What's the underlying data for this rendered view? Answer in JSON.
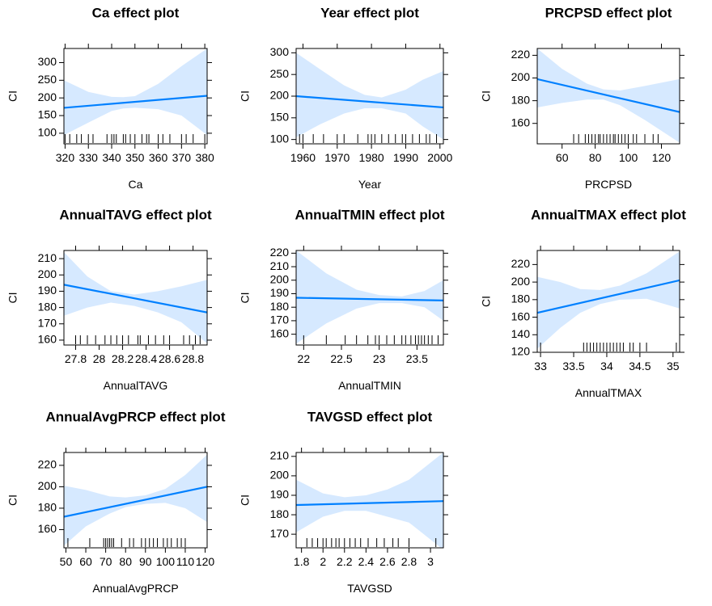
{
  "panels": [
    {
      "title": "Ca effect plot",
      "xlabel": "Ca",
      "ylabel": "CI",
      "xlim": [
        319.5,
        381
      ],
      "ylim": [
        70,
        340
      ],
      "xticks": [
        320,
        330,
        340,
        350,
        360,
        370,
        380
      ],
      "yticks": [
        100,
        150,
        200,
        250,
        300
      ],
      "fit": [
        [
          319.5,
          172
        ],
        [
          381,
          206
        ]
      ],
      "band": {
        "x": [
          319.5,
          330,
          340,
          345,
          350,
          360,
          370,
          381
        ],
        "upper": [
          250,
          217,
          203,
          202,
          205,
          240,
          290,
          340
        ],
        "lower": [
          95,
          130,
          163,
          170,
          172,
          168,
          150,
          95
        ]
      },
      "rug": [
        320,
        322,
        325,
        327,
        330,
        332,
        338,
        340,
        341,
        342,
        345,
        346,
        348,
        350,
        353,
        355,
        356,
        360,
        362,
        365,
        370,
        372,
        375,
        380
      ]
    },
    {
      "title": "Year effect plot",
      "xlabel": "Year",
      "ylabel": "CI",
      "xlim": [
        1958,
        2001
      ],
      "ylim": [
        90,
        310
      ],
      "xticks": [
        1960,
        1970,
        1980,
        1990,
        2000
      ],
      "yticks": [
        100,
        150,
        200,
        250,
        300
      ],
      "fit": [
        [
          1958,
          200
        ],
        [
          2001,
          174
        ]
      ],
      "band": {
        "x": [
          1958,
          1965,
          1972,
          1978,
          1983,
          1990,
          1995,
          2001
        ],
        "upper": [
          300,
          262,
          225,
          203,
          197,
          215,
          238,
          258
        ],
        "lower": [
          105,
          135,
          160,
          172,
          172,
          160,
          130,
          100
        ]
      },
      "rug": [
        1959,
        1960,
        1963,
        1966,
        1970,
        1972,
        1976,
        1979,
        1980,
        1981,
        1983,
        1985,
        1987,
        1989,
        1990,
        1992,
        1994,
        1996,
        1997,
        1999
      ]
    },
    {
      "title": "PRCPSD effect plot",
      "xlabel": "PRCPSD",
      "ylabel": "CI",
      "xlim": [
        45,
        131
      ],
      "ylim": [
        142,
        226
      ],
      "xticks": [
        60,
        80,
        100,
        120
      ],
      "yticks": [
        160,
        180,
        200,
        220
      ],
      "fit": [
        [
          45,
          199
        ],
        [
          131,
          170
        ]
      ],
      "band": {
        "x": [
          45,
          60,
          75,
          85,
          95,
          110,
          131
        ],
        "upper": [
          226,
          208,
          195,
          190,
          189,
          193,
          199
        ],
        "lower": [
          174,
          178,
          181,
          181,
          176,
          163,
          143
        ]
      },
      "rug": [
        67,
        70,
        74,
        76,
        78,
        80,
        82,
        83,
        85,
        87,
        89,
        91,
        92,
        94,
        96,
        98,
        100,
        103,
        105,
        110,
        115,
        118
      ]
    },
    {
      "title": "AnnualTAVG effect plot",
      "xlabel": "AnnualTAVG",
      "ylabel": "CI",
      "xlim": [
        27.7,
        28.92
      ],
      "ylim": [
        157,
        215
      ],
      "xticks": [
        27.8,
        28.0,
        28.2,
        28.4,
        28.6,
        28.8
      ],
      "yticks": [
        160,
        170,
        180,
        190,
        200,
        210
      ],
      "fit": [
        [
          27.7,
          194
        ],
        [
          28.92,
          177
        ]
      ],
      "band": {
        "x": [
          27.7,
          27.9,
          28.1,
          28.3,
          28.5,
          28.7,
          28.92
        ],
        "upper": [
          214,
          199,
          190,
          188,
          190,
          193,
          197
        ],
        "lower": [
          175,
          180,
          183,
          181,
          177,
          171,
          158
        ]
      },
      "rug": [
        27.8,
        27.84,
        27.9,
        27.97,
        28.05,
        28.1,
        28.15,
        28.2,
        28.25,
        28.33,
        28.35,
        28.42,
        28.48,
        28.55,
        28.6,
        28.72,
        28.77,
        28.82,
        28.86
      ]
    },
    {
      "title": "AnnualTMIN effect plot",
      "xlabel": "AnnualTMIN",
      "ylabel": "CI",
      "xlim": [
        21.9,
        23.85
      ],
      "ylim": [
        152,
        222
      ],
      "xticks": [
        22.0,
        22.5,
        23.0,
        23.5
      ],
      "yticks": [
        160,
        170,
        180,
        190,
        200,
        210,
        220
      ],
      "fit": [
        [
          21.9,
          187
        ],
        [
          23.85,
          185
        ]
      ],
      "band": {
        "x": [
          21.9,
          22.3,
          22.7,
          23.0,
          23.3,
          23.6,
          23.85
        ],
        "upper": [
          222,
          205,
          193,
          189,
          188,
          192,
          200
        ],
        "lower": [
          153,
          168,
          179,
          183,
          183,
          180,
          170
        ]
      },
      "rug": [
        22.0,
        22.3,
        22.55,
        22.7,
        22.85,
        22.95,
        23.0,
        23.1,
        23.2,
        23.3,
        23.35,
        23.42,
        23.48,
        23.52,
        23.56,
        23.6,
        23.65,
        23.7,
        23.78
      ]
    },
    {
      "title": "AnnualTMAX effect plot",
      "xlabel": "AnnualTMAX",
      "ylabel": "CI",
      "xlim": [
        32.95,
        35.1
      ],
      "ylim": [
        120,
        236
      ],
      "xticks": [
        33.0,
        33.5,
        34.0,
        34.5,
        35.0
      ],
      "yticks": [
        120,
        140,
        160,
        180,
        200,
        220
      ],
      "fit": [
        [
          32.95,
          165
        ],
        [
          35.1,
          202
        ]
      ],
      "band": {
        "x": [
          32.95,
          33.3,
          33.6,
          33.9,
          34.2,
          34.6,
          35.1
        ],
        "upper": [
          206,
          200,
          192,
          191,
          196,
          210,
          235
        ],
        "lower": [
          124,
          148,
          165,
          175,
          180,
          181,
          170
        ]
      },
      "rug": [
        33.0,
        33.65,
        33.7,
        33.75,
        33.8,
        33.85,
        33.9,
        33.95,
        34.0,
        34.05,
        34.1,
        34.15,
        34.2,
        34.25,
        34.35,
        34.4,
        34.5,
        34.6,
        35.05
      ]
    },
    {
      "title": "AnnualAvgPRCP effect plot",
      "xlabel": "AnnualAvgPRCP",
      "ylabel": "CI",
      "xlim": [
        49,
        121
      ],
      "ylim": [
        143,
        232
      ],
      "xticks": [
        50,
        60,
        70,
        80,
        90,
        100,
        110,
        120
      ],
      "yticks": [
        160,
        180,
        200,
        220
      ],
      "fit": [
        [
          49,
          172
        ],
        [
          121,
          200
        ]
      ],
      "band": {
        "x": [
          49,
          60,
          72,
          80,
          90,
          100,
          110,
          121
        ],
        "upper": [
          201,
          197,
          191,
          190,
          192,
          198,
          211,
          230
        ],
        "lower": [
          145,
          163,
          175,
          181,
          184,
          185,
          180,
          167
        ]
      },
      "rug": [
        51,
        62,
        69,
        70,
        71,
        72,
        73,
        74,
        78,
        82,
        84,
        88,
        90,
        92,
        94,
        96,
        99,
        101,
        103,
        106,
        108,
        110
      ]
    },
    {
      "title": "TAVGSD effect plot",
      "xlabel": "TAVGSD",
      "ylabel": "CI",
      "xlim": [
        1.75,
        3.12
      ],
      "ylim": [
        163,
        212
      ],
      "xticks": [
        1.8,
        2.0,
        2.2,
        2.4,
        2.6,
        2.8,
        3.0
      ],
      "yticks": [
        170,
        180,
        190,
        200,
        210
      ],
      "fit": [
        [
          1.75,
          185
        ],
        [
          3.12,
          187
        ]
      ],
      "band": {
        "x": [
          1.75,
          2.0,
          2.2,
          2.4,
          2.6,
          2.8,
          3.12
        ],
        "upper": [
          198,
          191,
          189,
          190,
          193,
          198,
          212
        ],
        "lower": [
          171,
          179,
          182,
          182,
          179,
          176,
          162
        ]
      },
      "rug": [
        1.85,
        1.9,
        1.95,
        2.0,
        2.03,
        2.08,
        2.12,
        2.15,
        2.2,
        2.25,
        2.3,
        2.35,
        2.42,
        2.5,
        2.57,
        2.65,
        2.7,
        2.8,
        3.05
      ]
    }
  ],
  "chart_data": [
    {
      "type": "line",
      "title": "Ca effect plot",
      "xlabel": "Ca",
      "ylabel": "CI",
      "xlim": [
        319.5,
        381
      ],
      "ylim": [
        70,
        340
      ],
      "x": [
        319.5,
        381
      ],
      "y": [
        172,
        206
      ],
      "grid": false
    },
    {
      "type": "line",
      "title": "Year effect plot",
      "xlabel": "Year",
      "ylabel": "CI",
      "xlim": [
        1958,
        2001
      ],
      "ylim": [
        90,
        310
      ],
      "x": [
        1958,
        2001
      ],
      "y": [
        200,
        174
      ],
      "grid": false
    },
    {
      "type": "line",
      "title": "PRCPSD effect plot",
      "xlabel": "PRCPSD",
      "ylabel": "CI",
      "xlim": [
        45,
        131
      ],
      "ylim": [
        142,
        226
      ],
      "x": [
        45,
        131
      ],
      "y": [
        199,
        170
      ],
      "grid": false
    },
    {
      "type": "line",
      "title": "AnnualTAVG effect plot",
      "xlabel": "AnnualTAVG",
      "ylabel": "CI",
      "xlim": [
        27.7,
        28.92
      ],
      "ylim": [
        157,
        215
      ],
      "x": [
        27.7,
        28.92
      ],
      "y": [
        194,
        177
      ],
      "grid": false
    },
    {
      "type": "line",
      "title": "AnnualTMIN effect plot",
      "xlabel": "AnnualTMIN",
      "ylabel": "CI",
      "xlim": [
        21.9,
        23.85
      ],
      "ylim": [
        152,
        222
      ],
      "x": [
        21.9,
        23.85
      ],
      "y": [
        187,
        185
      ],
      "grid": false
    },
    {
      "type": "line",
      "title": "AnnualTMAX effect plot",
      "xlabel": "AnnualTMAX",
      "ylabel": "CI",
      "xlim": [
        32.95,
        35.1
      ],
      "ylim": [
        120,
        236
      ],
      "x": [
        32.95,
        35.1
      ],
      "y": [
        165,
        202
      ],
      "grid": false
    },
    {
      "type": "line",
      "title": "AnnualAvgPRCP effect plot",
      "xlabel": "AnnualAvgPRCP",
      "ylabel": "CI",
      "xlim": [
        49,
        121
      ],
      "ylim": [
        143,
        232
      ],
      "x": [
        49,
        121
      ],
      "y": [
        172,
        200
      ],
      "grid": false
    },
    {
      "type": "line",
      "title": "TAVGSD effect plot",
      "xlabel": "TAVGSD",
      "ylabel": "CI",
      "xlim": [
        1.75,
        3.12
      ],
      "ylim": [
        163,
        212
      ],
      "x": [
        1.75,
        3.12
      ],
      "y": [
        185,
        187
      ],
      "grid": false
    }
  ],
  "colors": {
    "fit_line": "#0080ff",
    "band": "#d6e9ff",
    "axis": "#000000",
    "text": "#000000"
  }
}
